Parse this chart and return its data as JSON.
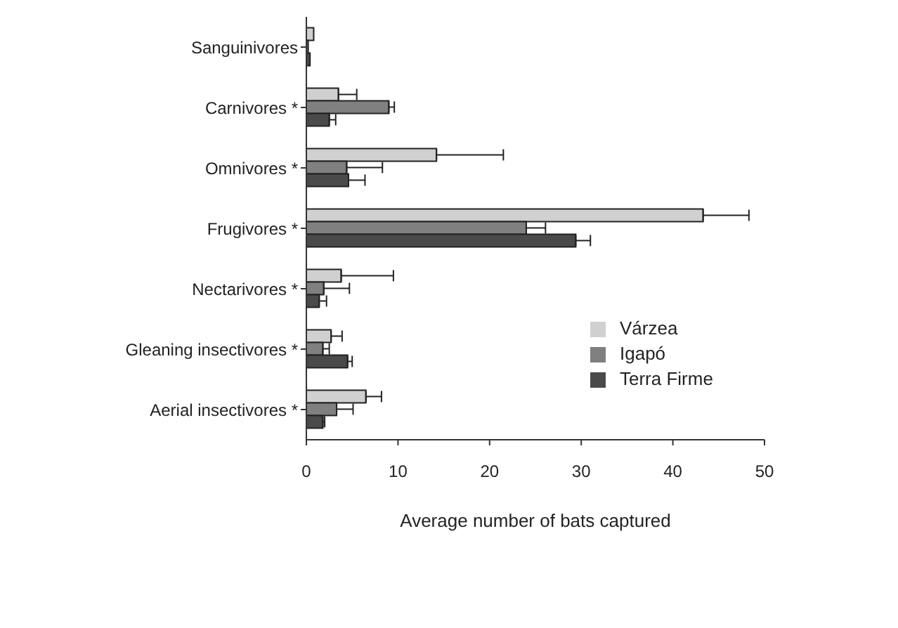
{
  "chart_data": {
    "type": "bar",
    "orientation": "horizontal",
    "xlabel": "Average number of bats captured",
    "categories": [
      "Sanguinivores",
      "Carnivores *",
      "Omnivores *",
      "Frugivores *",
      "Nectarivores *",
      "Gleaning insectivores *",
      "Aerial insectivores *"
    ],
    "series": [
      {
        "name": "Várzea",
        "color": "#d0d0d0",
        "values": [
          0.8,
          3.5,
          14.2,
          43.3,
          3.8,
          2.7,
          6.5
        ],
        "errors": [
          null,
          [
            3.5,
            5.5
          ],
          [
            14.2,
            21.5
          ],
          [
            43.3,
            48.3
          ],
          [
            3.8,
            9.5
          ],
          [
            2.7,
            3.9
          ],
          [
            6.5,
            8.2
          ]
        ]
      },
      {
        "name": "Igapó",
        "color": "#808080",
        "values": [
          0.2,
          9.0,
          4.4,
          24.0,
          1.9,
          1.8,
          3.3
        ],
        "errors": [
          null,
          [
            9.0,
            9.6
          ],
          [
            4.4,
            8.3
          ],
          [
            24.0,
            26.1
          ],
          [
            1.9,
            4.7
          ],
          [
            1.8,
            2.5
          ],
          [
            3.3,
            5.1
          ]
        ]
      },
      {
        "name": "Terra Firme",
        "color": "#4a4a4a",
        "values": [
          0.4,
          2.5,
          4.6,
          29.4,
          1.4,
          4.5,
          1.8
        ],
        "errors": [
          null,
          [
            2.5,
            3.2
          ],
          [
            4.6,
            6.4
          ],
          [
            29.4,
            31.0
          ],
          [
            1.4,
            2.2
          ],
          [
            4.5,
            5.0
          ],
          [
            1.8,
            2.0
          ]
        ]
      }
    ],
    "xlim": [
      0,
      50
    ],
    "xticks": [
      0,
      10,
      20,
      30,
      40,
      50
    ],
    "grid": false,
    "legend": "right"
  }
}
